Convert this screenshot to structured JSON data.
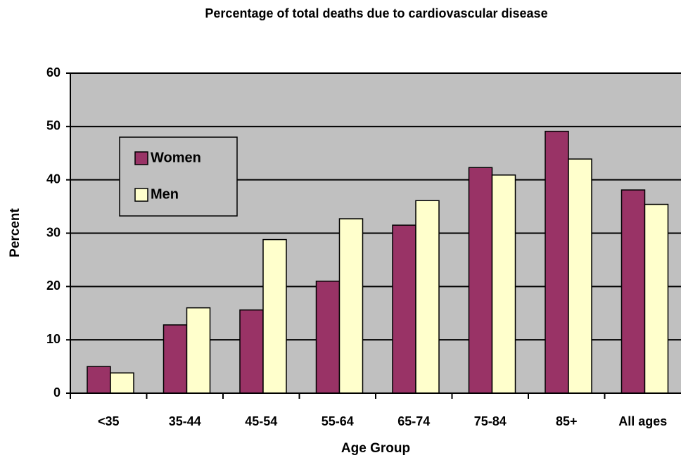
{
  "chart_data": {
    "type": "bar",
    "title": "Percentage of total deaths due to cardiovascular disease",
    "x_label": "Age Group",
    "y_label": "Percent",
    "categories": [
      "<35",
      "35-44",
      "45-54",
      "55-64",
      "65-74",
      "75-84",
      "85+",
      "All ages"
    ],
    "series": [
      {
        "name": "Women",
        "color": "#993366",
        "values": [
          5.0,
          12.8,
          15.6,
          21.0,
          31.5,
          42.3,
          49.1,
          38.1
        ]
      },
      {
        "name": "Men",
        "color": "#ffffcc",
        "values": [
          3.8,
          16.0,
          28.8,
          32.7,
          36.1,
          40.9,
          43.9,
          35.4
        ]
      }
    ],
    "ylim": [
      0,
      60
    ],
    "yticks": [
      0,
      10,
      20,
      30,
      40,
      50,
      60
    ],
    "grid": true,
    "legend": "upper left"
  }
}
